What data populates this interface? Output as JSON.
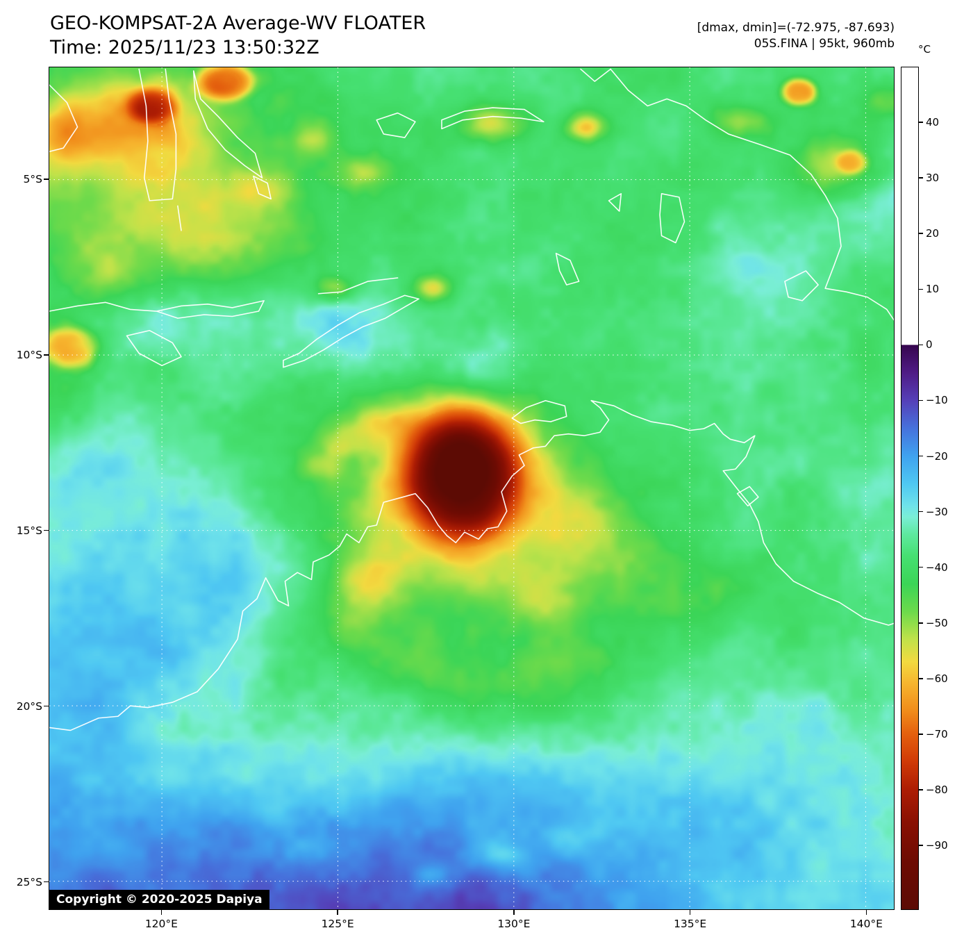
{
  "header": {
    "title": "GEO-KOMPSAT-2A Average-WV FLOATER",
    "time": "Time: 2025/11/23 13:50:32Z",
    "dmax_dmin": "[dmax, dmin]=(-72.975, -87.693)",
    "storm": "05S.FINA | 95kt, 960mb"
  },
  "colorbar": {
    "unit": "°C",
    "value_max": 50,
    "value_min": -101.6,
    "tick_values": [
      40,
      30,
      20,
      10,
      0,
      -10,
      -20,
      -30,
      -40,
      -50,
      -60,
      -70,
      -80,
      -90
    ],
    "tick_labels": [
      "40",
      "30",
      "20",
      "10",
      "0",
      "−10",
      "−20",
      "−30",
      "−40",
      "−50",
      "−60",
      "−70",
      "−80",
      "−90"
    ],
    "palette": [
      [
        0,
        "#36064e"
      ],
      [
        -5,
        "#4f1c86"
      ],
      [
        -10,
        "#5540b8"
      ],
      [
        -15,
        "#4672dc"
      ],
      [
        -20,
        "#3fa2ef"
      ],
      [
        -25,
        "#4fc8f2"
      ],
      [
        -29,
        "#6fe3ea"
      ],
      [
        -31,
        "#7aeed6"
      ],
      [
        -34,
        "#5fe9a0"
      ],
      [
        -38,
        "#46e072"
      ],
      [
        -43,
        "#3bd557"
      ],
      [
        -48,
        "#6cda4b"
      ],
      [
        -53,
        "#c0e24a"
      ],
      [
        -57,
        "#f2da40"
      ],
      [
        -61,
        "#f6b42e"
      ],
      [
        -66,
        "#f08b1a"
      ],
      [
        -70,
        "#e4600e"
      ],
      [
        -75,
        "#d03a07"
      ],
      [
        -80,
        "#ad1d04"
      ],
      [
        -86,
        "#891003"
      ],
      [
        -93,
        "#6d0b03"
      ],
      [
        -101.6,
        "#5c0b04"
      ]
    ]
  },
  "map": {
    "extent": {
      "lon_min": 116.8,
      "lon_max": 140.8,
      "lat_min": 1.8,
      "lat_max": 25.8
    },
    "lat_ticks": [
      {
        "value": 5,
        "label": "5°S"
      },
      {
        "value": 10,
        "label": "10°S"
      },
      {
        "value": 15,
        "label": "15°S"
      },
      {
        "value": 20,
        "label": "20°S"
      },
      {
        "value": 25,
        "label": "25°S"
      }
    ],
    "lon_ticks": [
      {
        "value": 120,
        "label": "120°E"
      },
      {
        "value": 125,
        "label": "125°E"
      },
      {
        "value": 130,
        "label": "130°E"
      },
      {
        "value": 135,
        "label": "135°E"
      },
      {
        "value": 140,
        "label": "140°E"
      }
    ],
    "copyright": "Copyright © 2020-2025 Dapiya"
  }
}
